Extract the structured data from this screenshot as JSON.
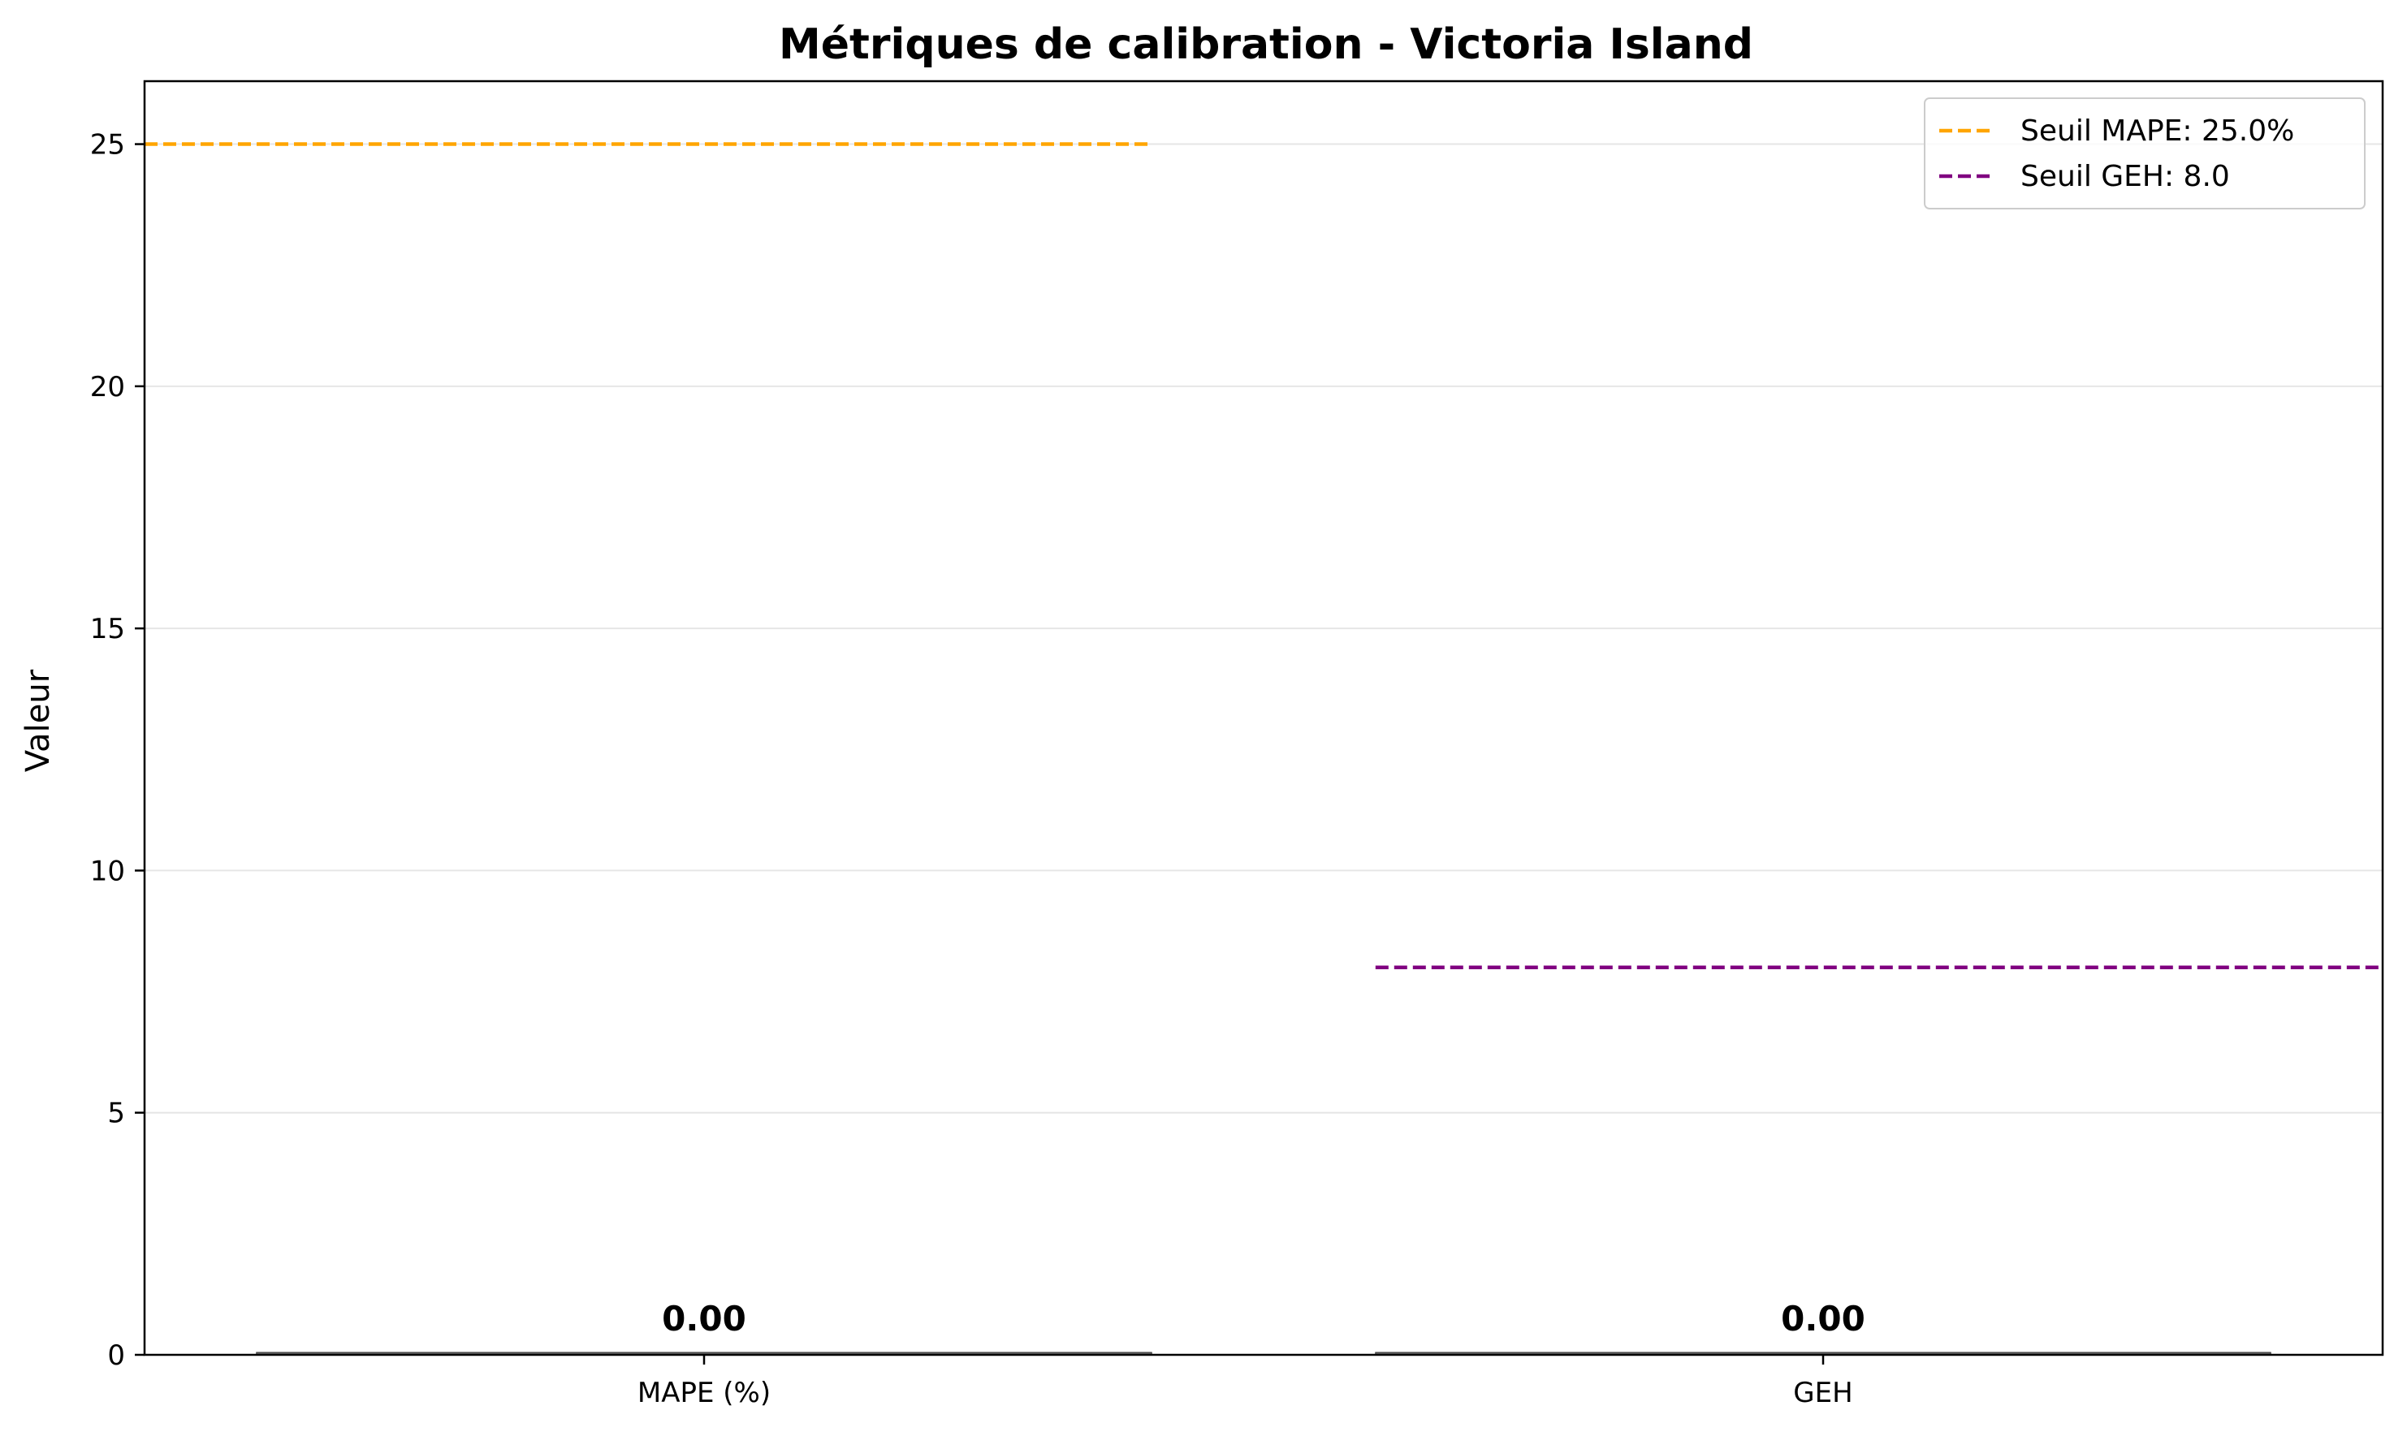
{
  "chart_data": {
    "type": "bar",
    "title": "Métriques de calibration - Victoria Island",
    "ylabel": "Valeur",
    "xlabel": "",
    "categories": [
      "MAPE (%)",
      "GEH"
    ],
    "values": [
      0.0,
      0.0
    ],
    "value_labels": [
      "0.00",
      "0.00"
    ],
    "ylim": [
      0,
      26.3
    ],
    "yticks": [
      0,
      5,
      10,
      15,
      20,
      25
    ],
    "grid": "y",
    "legend_placement": "top-right",
    "thresholds": [
      {
        "name": "Seuil MAPE: 25.0%",
        "value": 25.0,
        "category": "MAPE (%)",
        "color": "#ffa500"
      },
      {
        "name": "Seuil GEH: 8.0",
        "value": 8.0,
        "category": "GEH",
        "color": "#800080"
      }
    ],
    "bar_color": "#555555"
  }
}
